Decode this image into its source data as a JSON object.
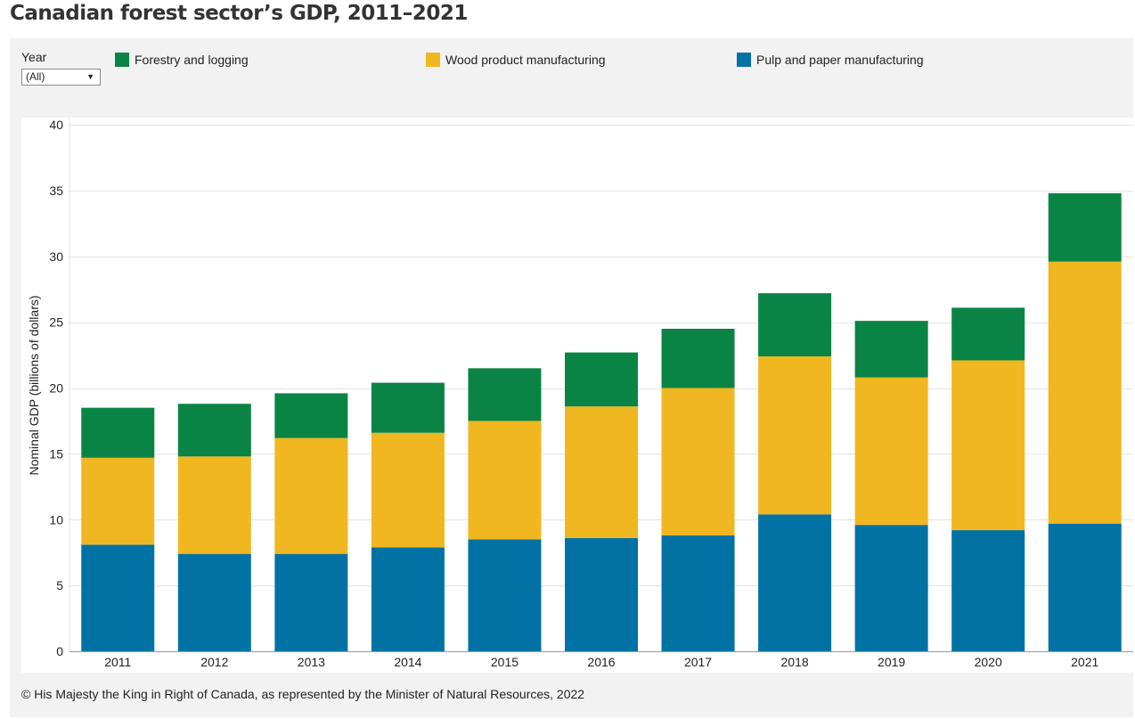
{
  "title": "Canadian forest sector’s GDP, 2011–2021",
  "filter": {
    "label": "Year",
    "selected": "(All)"
  },
  "footer": "© His Majesty the King in Right of Canada, as represented by the Minister of Natural Resources, 2022",
  "colors": {
    "forestry": "#0a8444",
    "wood": "#f0b720",
    "pulp": "#0272a4",
    "grid": "#e4e4e4"
  },
  "chart_data": {
    "type": "bar",
    "stacked": true,
    "categories": [
      "2011",
      "2012",
      "2013",
      "2014",
      "2015",
      "2016",
      "2017",
      "2018",
      "2019",
      "2020",
      "2021"
    ],
    "series": [
      {
        "key": "pulp",
        "name": "Pulp and paper manufacturing",
        "values": [
          8.1,
          7.4,
          7.4,
          7.9,
          8.5,
          8.6,
          8.8,
          10.4,
          9.6,
          9.2,
          9.7
        ]
      },
      {
        "key": "wood",
        "name": "Wood product manufacturing",
        "values": [
          6.6,
          7.4,
          8.8,
          8.7,
          9.0,
          10.0,
          11.2,
          12.0,
          11.2,
          12.9,
          19.9
        ]
      },
      {
        "key": "forestry",
        "name": "Forestry and logging",
        "values": [
          3.8,
          4.0,
          3.4,
          3.8,
          4.0,
          4.1,
          4.5,
          4.8,
          4.3,
          4.0,
          5.2
        ]
      }
    ],
    "ylabel": "Nominal GDP (billions of dollars)",
    "xlabel": "",
    "ylim": [
      0,
      40
    ],
    "yticks": [
      0,
      5,
      10,
      15,
      20,
      25,
      30,
      35,
      40
    ],
    "grid": true,
    "legend_position": "top"
  }
}
